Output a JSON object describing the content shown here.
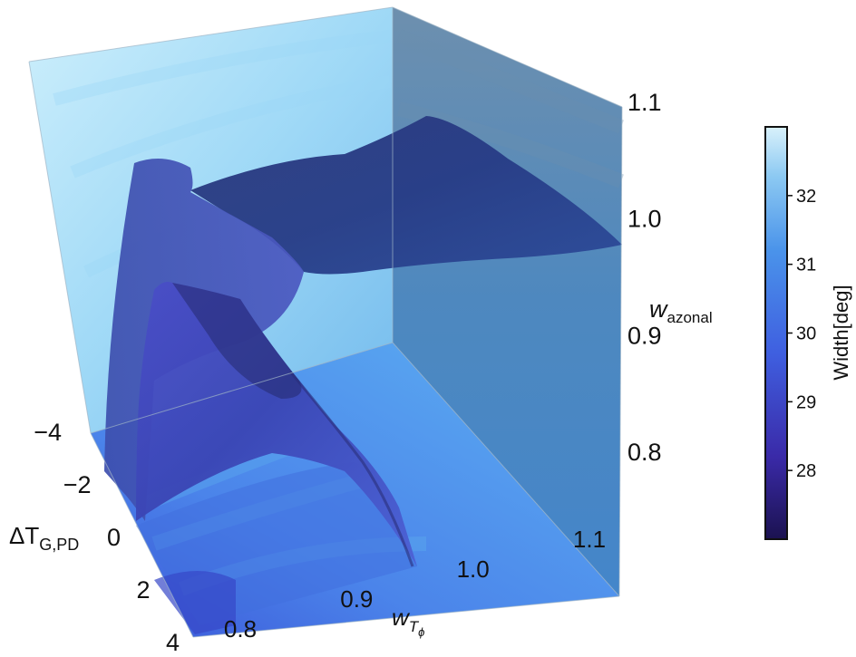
{
  "chart_data": {
    "type": "3d-surface",
    "x_axis": {
      "label": "ΔT",
      "label_sub": "G,PD",
      "ticks": [
        "-4",
        "-2",
        "0",
        "2",
        "4"
      ],
      "range": [
        -4,
        4
      ]
    },
    "y_axis": {
      "label": "w",
      "label_sub": "T",
      "label_subsub": "ϕ",
      "ticks": [
        "0.8",
        "0.9",
        "1.0",
        "1.1"
      ],
      "range": [
        0.75,
        1.1
      ]
    },
    "z_axis": {
      "label": "w",
      "label_sub": "azonal",
      "ticks": [
        "0.8",
        "0.9",
        "1.0",
        "1.1"
      ],
      "range": [
        0.75,
        1.1
      ]
    },
    "colorbar": {
      "label": "Width[deg]",
      "ticks": [
        "28",
        "29",
        "30",
        "31",
        "32"
      ],
      "range": [
        27.0,
        33.0
      ],
      "colormap": [
        "#1b1250",
        "#3a2aa8",
        "#3f5fe0",
        "#4a93ea",
        "#8cc9f2",
        "#d9f1fb"
      ]
    },
    "surfaces": [
      {
        "name": "isosurface-upper",
        "color": "#2a3f8c"
      },
      {
        "name": "isosurface-lower",
        "color": "#3b42b8"
      }
    ]
  }
}
